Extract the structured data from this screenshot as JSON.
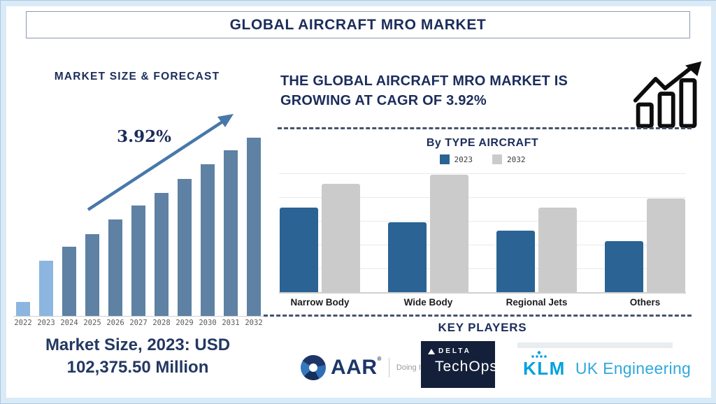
{
  "header": {
    "title": "GLOBAL AIRCRAFT MRO MARKET"
  },
  "colors": {
    "navy": "#1b2d5b",
    "frame_bg": "#daeaf7",
    "dash": "#44546a",
    "arrow": "#4878aa",
    "aar_navy": "#1c3667",
    "aar_blue": "#2f6eb5",
    "delta_bg": "#14203a",
    "klm_blue": "#00a1de"
  },
  "chart_data": [
    {
      "type": "bar",
      "title": "MARKET SIZE & FORECAST",
      "categories": [
        "2022",
        "2023",
        "2024",
        "2025",
        "2026",
        "2027",
        "2028",
        "2029",
        "2030",
        "2031",
        "2032"
      ],
      "values_relative": [
        8,
        31,
        39,
        46,
        54,
        62,
        69,
        77,
        85,
        93,
        100
      ],
      "highlight_years": [
        "2022",
        "2023"
      ],
      "bar_color": "#5e81a4",
      "highlight_color": "#8cb6df",
      "annotation": "3.92%",
      "note": "Market Size, 2023: USD 102,375.50 Million",
      "xlabel": "",
      "ylabel": "",
      "grid": false,
      "axis_values_shown": false
    },
    {
      "type": "bar",
      "title": "By TYPE AIRCRAFT",
      "categories": [
        "Narrow Body",
        "Wide Body",
        "Regional Jets",
        "Others"
      ],
      "series": [
        {
          "name": "2023",
          "color": "#2a6394",
          "values": [
            71,
            59,
            52,
            43
          ]
        },
        {
          "name": "2032",
          "color": "#cbcbcb",
          "values": [
            91,
            99,
            71,
            79
          ]
        }
      ],
      "ylim": [
        0,
        100
      ],
      "grid": true,
      "legend_position": "top",
      "axis_values_shown": false
    }
  ],
  "right_panel": {
    "heading_line1": "THE GLOBAL AIRCRAFT MRO MARKET IS",
    "heading_line2": "GROWING AT CAGR OF 3.92%",
    "key_players": {
      "title": "KEY PLAYERS",
      "companies": [
        {
          "name": "AAR",
          "reg": "®",
          "tagline": "Doing It Right"
        },
        {
          "brand": "DELTA",
          "product": "TechOps"
        },
        {
          "brand": "KLM",
          "suffix": "UK Engineering"
        }
      ]
    }
  }
}
